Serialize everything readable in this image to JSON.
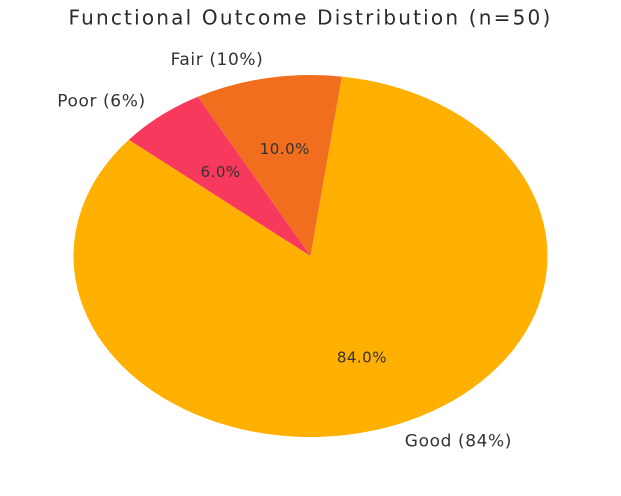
{
  "chart_data": {
    "type": "pie",
    "title": "Functional Outcome Distribution (n=50)",
    "n": 50,
    "start_angle_deg": 140,
    "direction": "counterclockwise",
    "legend": "none",
    "background_color": "#ffffff",
    "text_color": "#333333",
    "title_color": "#2b2b2b",
    "slices": [
      {
        "name": "Good",
        "value": 84,
        "label": "Good (84%)",
        "pct_label": "84.0%",
        "color": "#FFB000"
      },
      {
        "name": "Fair",
        "value": 10,
        "label": "Fair (10%)",
        "pct_label": "10.0%",
        "color": "#F06E1E"
      },
      {
        "name": "Poor",
        "value": 6,
        "label": "Poor (6%)",
        "pct_label": "6.0%",
        "color": "#F6395C"
      }
    ]
  }
}
